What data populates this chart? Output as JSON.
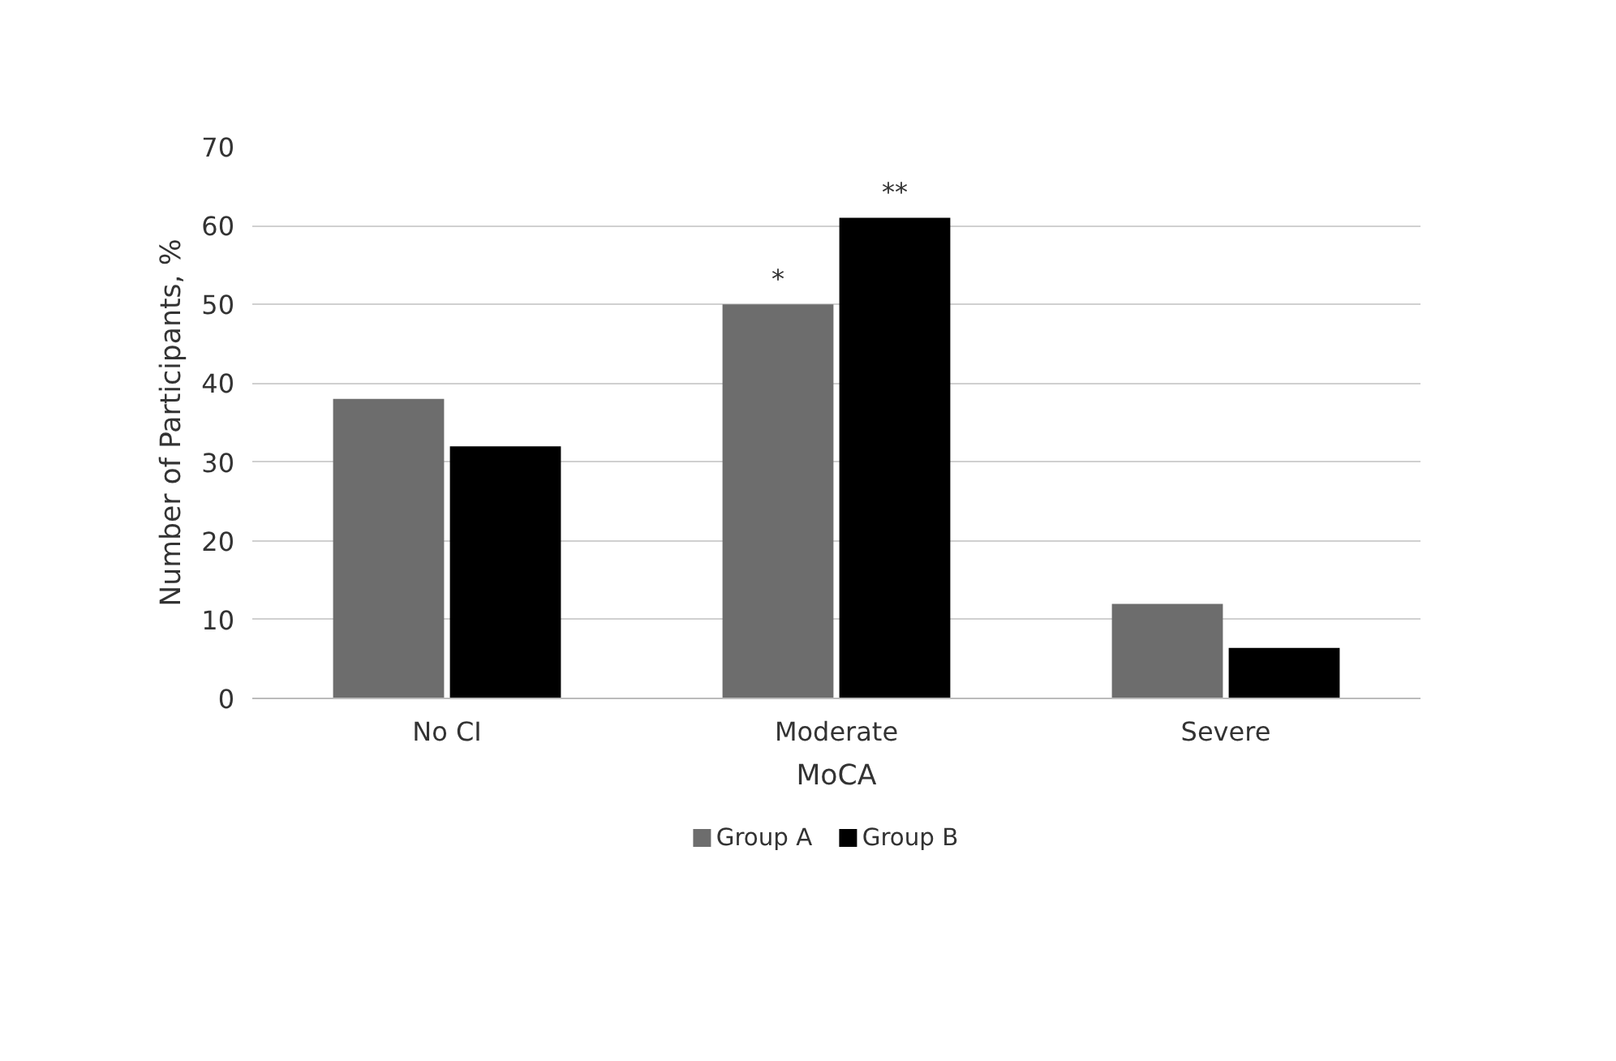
{
  "chart_data": {
    "type": "bar",
    "xlabel": "MoCA",
    "ylabel": "Number of Participants, %",
    "categories": [
      "No CI",
      "Moderate",
      "Severe"
    ],
    "series": [
      {
        "name": "Group A",
        "color": "#6d6d6d",
        "values": [
          38,
          50,
          12
        ]
      },
      {
        "name": "Group B",
        "color": "#000000",
        "values": [
          32,
          61,
          6.4
        ]
      }
    ],
    "ylim": [
      0,
      70
    ],
    "yticks": [
      0,
      10,
      20,
      30,
      40,
      50,
      60,
      70
    ],
    "grid": "y",
    "legend": "bottom",
    "annotations": [
      {
        "text": "*",
        "x": "Moderate",
        "y": 50
      },
      {
        "text": "**",
        "x": "Moderate",
        "y": 61
      }
    ]
  }
}
